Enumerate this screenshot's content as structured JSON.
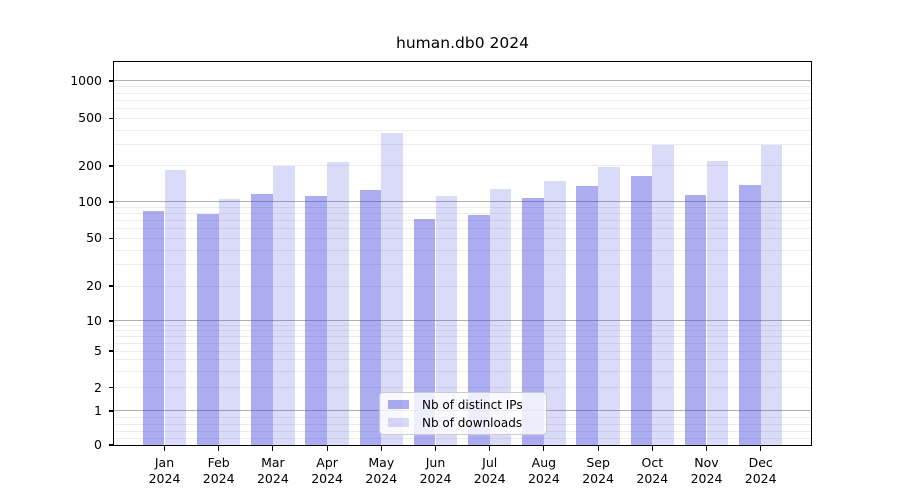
{
  "chart_data": {
    "type": "bar",
    "title": "human.db0 2024",
    "categories": [
      "Jan 2024",
      "Feb 2024",
      "Mar 2024",
      "Apr 2024",
      "May 2024",
      "Jun 2024",
      "Jul 2024",
      "Aug 2024",
      "Sep 2024",
      "Oct 2024",
      "Nov 2024",
      "Dec 2024"
    ],
    "series": [
      {
        "name": "Nb of distinct IPs",
        "color": "rgba(70,70,225,0.45)",
        "values": [
          84,
          79,
          116,
          112,
          127,
          72,
          78,
          107,
          135,
          165,
          115,
          138
        ]
      },
      {
        "name": "Nb of downloads",
        "color": "rgba(70,70,225,0.20)",
        "values": [
          185,
          105,
          200,
          215,
          380,
          112,
          129,
          150,
          198,
          300,
          220,
          298
        ]
      }
    ],
    "xlabel": "",
    "ylabel": "",
    "yscale": "symlog",
    "ylim": [
      0,
      1400
    ],
    "yticks": [
      1000,
      500,
      200,
      100,
      50,
      20,
      10,
      5,
      2,
      1,
      0
    ],
    "grid": "horizontal major+minor",
    "grid_major": [
      1,
      10,
      100,
      1000
    ],
    "grid_minor": [
      0.2,
      0.4,
      0.6,
      0.8,
      2,
      3,
      4,
      5,
      6,
      7,
      8,
      9,
      20,
      30,
      40,
      50,
      60,
      70,
      80,
      90,
      200,
      300,
      400,
      500,
      600,
      700,
      800,
      900
    ],
    "legend_position": "lower center"
  },
  "colors": {
    "bar_dark": "rgba(70,70,225,0.45)",
    "bar_light": "rgba(70,70,225,0.20)",
    "grid_major": "#b0b0b0",
    "grid_minor": "#ececec",
    "spine": "#000000",
    "legend_border": "#cccccc",
    "background": "#ffffff"
  }
}
